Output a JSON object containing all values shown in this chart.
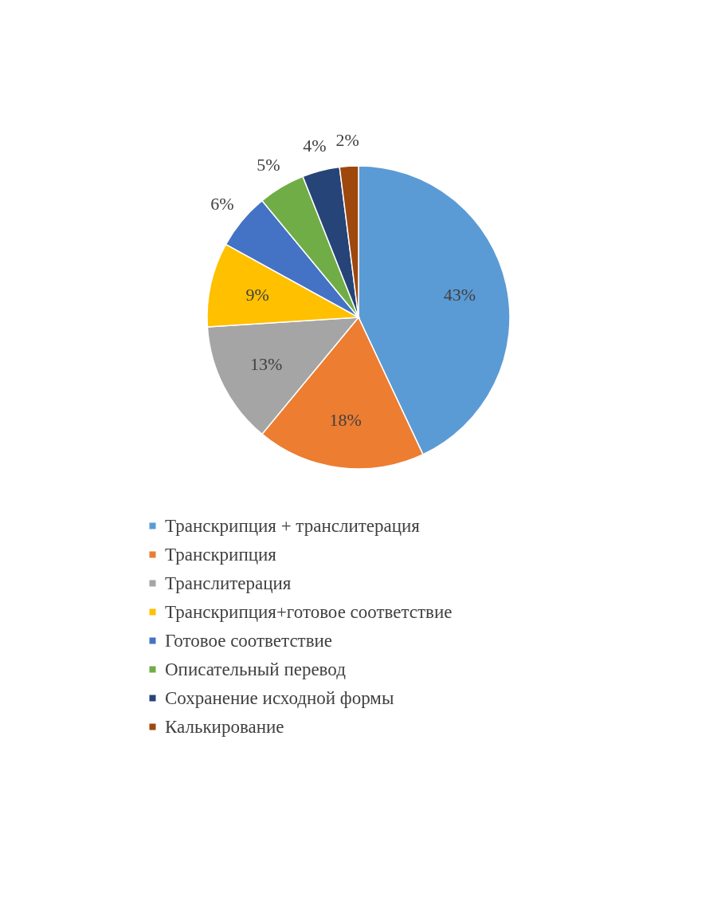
{
  "chart_data": {
    "type": "pie",
    "categories": [
      "Транскрипция + транслитерация",
      "Транскрипция",
      "Транслитерация",
      "Транскрипция+готовое соответствие",
      "Готовое соответствие",
      "Описательный перевод",
      "Сохранение исходной формы",
      "Калькирование"
    ],
    "values": [
      43,
      18,
      13,
      9,
      6,
      5,
      4,
      2
    ],
    "colors": [
      "#5b9bd5",
      "#ed7d31",
      "#a5a5a5",
      "#ffc000",
      "#4472c4",
      "#70ad47",
      "#264478",
      "#9e480e"
    ],
    "value_labels": [
      "43%",
      "18%",
      "13%",
      "9%",
      "6%",
      "5%",
      "4%",
      "2%"
    ],
    "legend": "bottom"
  }
}
